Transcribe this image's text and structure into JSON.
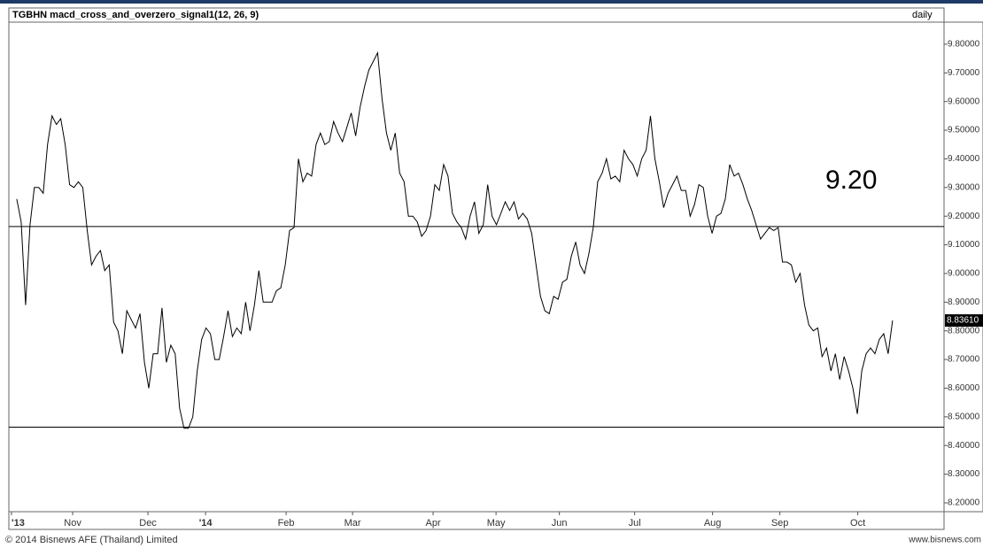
{
  "chart_data": {
    "type": "line",
    "title": "TGBHN macd_cross_and_overzero_signal1(12, 26, 9)",
    "period": "daily",
    "annotation": "9.20",
    "footer_left": "© 2014 Bisnews AFE (Thailand) Limited",
    "footer_right": "www.bisnews.com",
    "color": "#000000",
    "x": [
      0,
      1,
      2,
      3,
      4,
      5,
      6,
      7,
      8,
      9,
      10,
      11,
      12,
      13,
      14,
      15,
      16,
      17,
      18,
      19,
      20,
      21,
      22,
      23,
      24,
      25,
      26,
      27,
      28,
      29,
      30,
      31,
      32,
      33,
      34,
      35,
      36,
      37,
      38,
      39,
      40,
      41,
      42,
      43,
      44,
      45,
      46,
      47,
      48,
      49,
      50,
      51,
      52,
      53,
      54,
      55,
      56,
      57,
      58,
      59,
      60,
      61,
      62,
      63,
      64,
      65,
      66,
      67,
      68,
      69,
      70,
      71,
      72,
      73,
      74,
      75,
      76,
      77,
      78,
      79,
      80,
      81,
      82,
      83,
      84,
      85,
      86,
      87,
      88,
      89,
      90,
      91,
      92,
      93,
      94,
      95,
      96,
      97,
      98,
      99,
      100,
      101,
      102,
      103,
      104,
      105,
      106,
      107,
      108,
      109,
      110,
      111,
      112,
      113,
      114,
      115,
      116,
      117,
      118,
      119,
      120,
      121,
      122,
      123,
      124,
      125,
      126,
      127,
      128,
      129,
      130,
      131,
      132,
      133,
      134,
      135,
      136,
      137,
      138,
      139,
      140,
      141,
      142,
      143,
      144,
      145,
      146,
      147,
      148,
      149,
      150,
      151,
      152,
      153,
      154,
      155,
      156,
      157,
      158,
      159,
      160,
      161,
      162,
      163,
      164,
      165,
      166,
      167,
      168,
      169,
      170,
      171,
      172,
      173,
      174,
      175,
      176,
      177,
      178,
      179,
      180,
      181,
      182,
      183,
      184,
      185,
      186,
      187,
      188,
      189,
      190,
      191,
      192,
      193,
      194,
      195,
      196,
      197,
      198,
      199
    ],
    "values": [
      9.26,
      9.18,
      8.89,
      9.17,
      9.3,
      9.3,
      9.28,
      9.45,
      9.55,
      9.52,
      9.54,
      9.45,
      9.31,
      9.3,
      9.32,
      9.3,
      9.15,
      9.03,
      9.06,
      9.08,
      9.01,
      9.03,
      8.83,
      8.8,
      8.72,
      8.87,
      8.84,
      8.81,
      8.86,
      8.69,
      8.6,
      8.72,
      8.72,
      8.88,
      8.69,
      8.75,
      8.72,
      8.53,
      8.46,
      8.46,
      8.5,
      8.66,
      8.77,
      8.81,
      8.79,
      8.7,
      8.7,
      8.78,
      8.87,
      8.78,
      8.81,
      8.79,
      8.9,
      8.8,
      8.89,
      9.01,
      8.9,
      8.9,
      8.9,
      8.94,
      8.95,
      9.03,
      9.15,
      9.16,
      9.4,
      9.32,
      9.35,
      9.34,
      9.45,
      9.49,
      9.45,
      9.46,
      9.53,
      9.49,
      9.46,
      9.51,
      9.56,
      9.48,
      9.58,
      9.65,
      9.71,
      9.74,
      9.77,
      9.61,
      9.49,
      9.43,
      9.49,
      9.35,
      9.32,
      9.2,
      9.2,
      9.18,
      9.13,
      9.15,
      9.2,
      9.31,
      9.29,
      9.38,
      9.34,
      9.21,
      9.18,
      9.16,
      9.12,
      9.2,
      9.25,
      9.14,
      9.17,
      9.31,
      9.2,
      9.17,
      9.21,
      9.25,
      9.22,
      9.25,
      9.19,
      9.21,
      9.19,
      9.14,
      9.03,
      8.92,
      8.87,
      8.86,
      8.92,
      8.91,
      8.97,
      8.98,
      9.06,
      9.11,
      9.03,
      9.0,
      9.07,
      9.16,
      9.32,
      9.35,
      9.4,
      9.33,
      9.34,
      9.32,
      9.43,
      9.4,
      9.38,
      9.34,
      9.4,
      9.43,
      9.55,
      9.4,
      9.32,
      9.23,
      9.28,
      9.31,
      9.34,
      9.29,
      9.29,
      9.2,
      9.24,
      9.31,
      9.3,
      9.2,
      9.14,
      9.2,
      9.21,
      9.26,
      9.38,
      9.34,
      9.35,
      9.31,
      9.26,
      9.22,
      9.17,
      9.12,
      9.14,
      9.16,
      9.15,
      9.16,
      9.04,
      9.04,
      9.03,
      8.97,
      9.0,
      8.89,
      8.82,
      8.8,
      8.81,
      8.71,
      8.74,
      8.66,
      8.72,
      8.63,
      8.71,
      8.66,
      8.6,
      8.51,
      8.66,
      8.72,
      8.74,
      8.72,
      8.77,
      8.79,
      8.72,
      8.8361
    ],
    "last_label": "8.83610",
    "hlines": [
      9.164,
      8.464
    ],
    "xlim": [
      -1.8,
      210.7
    ],
    "ylim": [
      8.169,
      9.877
    ],
    "xticks": [
      {
        "value": -1.2,
        "label": "'13"
      },
      {
        "value": 12.7,
        "label": "Nov"
      },
      {
        "value": 29.8,
        "label": "Dec"
      },
      {
        "value": 42.9,
        "label": "'14"
      },
      {
        "value": 61.2,
        "label": "Feb"
      },
      {
        "value": 76.3,
        "label": "Mar"
      },
      {
        "value": 94.6,
        "label": "Apr"
      },
      {
        "value": 108.9,
        "label": "May"
      },
      {
        "value": 123.3,
        "label": "Jun"
      },
      {
        "value": 140.4,
        "label": "Jul"
      },
      {
        "value": 158.1,
        "label": "Aug"
      },
      {
        "value": 173.4,
        "label": "Sep"
      },
      {
        "value": 191.1,
        "label": "Oct"
      }
    ],
    "yticks": [
      {
        "value": 8.2,
        "label": "8.20000"
      },
      {
        "value": 8.3,
        "label": "8.30000"
      },
      {
        "value": 8.4,
        "label": "8.40000"
      },
      {
        "value": 8.5,
        "label": "8.50000"
      },
      {
        "value": 8.6,
        "label": "8.60000"
      },
      {
        "value": 8.7,
        "label": "8.70000"
      },
      {
        "value": 8.8,
        "label": "8.80000"
      },
      {
        "value": 8.9,
        "label": "8.90000"
      },
      {
        "value": 9.0,
        "label": "9.00000"
      },
      {
        "value": 9.1,
        "label": "9.10000"
      },
      {
        "value": 9.2,
        "label": "9.20000"
      },
      {
        "value": 9.3,
        "label": "9.30000"
      },
      {
        "value": 9.4,
        "label": "9.40000"
      },
      {
        "value": 9.5,
        "label": "9.50000"
      },
      {
        "value": 9.6,
        "label": "9.60000"
      },
      {
        "value": 9.7,
        "label": "9.70000"
      },
      {
        "value": 9.8,
        "label": "9.80000"
      }
    ]
  }
}
